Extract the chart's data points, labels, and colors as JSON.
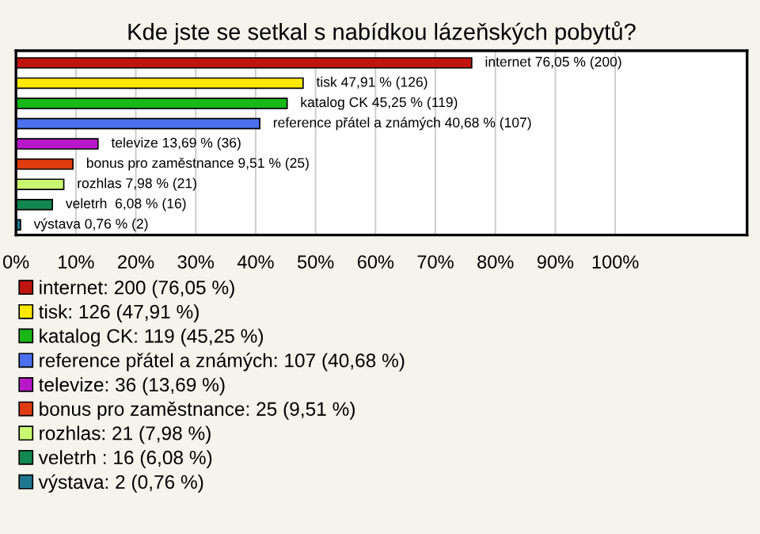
{
  "chart_data": {
    "type": "bar",
    "orientation": "horizontal",
    "title": "Kde jste se setkal s nabídkou lázeňských pobytů?",
    "categories": [
      null,
      null,
      null,
      null,
      null,
      null,
      null,
      null,
      null
    ],
    "series": [
      {
        "name": "internet: 200 (76,05 %)",
        "color": "#c0150f",
        "values": [
          76.05,
          null,
          null,
          null,
          null,
          null,
          null,
          null,
          null
        ],
        "value_labels": [
          "internet 76,05 % (200)",
          null,
          null,
          null,
          null,
          null,
          null,
          null,
          null
        ]
      },
      {
        "name": "tisk: 126 (47,91 %)",
        "color": "#ffe800",
        "values": [
          null,
          47.91,
          null,
          null,
          null,
          null,
          null,
          null,
          null
        ],
        "value_labels": [
          null,
          "tisk 47,91 % (126)",
          null,
          null,
          null,
          null,
          null,
          null,
          null
        ]
      },
      {
        "name": "katalog CK: 119 (45,25 %)",
        "color": "#18b818",
        "values": [
          null,
          null,
          45.25,
          null,
          null,
          null,
          null,
          null,
          null
        ],
        "value_labels": [
          null,
          null,
          "katalog CK 45,25 % (119)",
          null,
          null,
          null,
          null,
          null,
          null
        ]
      },
      {
        "name": "reference přátel a známých: 107 (40,68 %)",
        "color": "#4a70ee",
        "values": [
          null,
          null,
          null,
          40.68,
          null,
          null,
          null,
          null,
          null
        ],
        "value_labels": [
          null,
          null,
          null,
          "reference přátel a známých 40,68 % (107)",
          null,
          null,
          null,
          null,
          null
        ]
      },
      {
        "name": "televize: 36 (13,69 %)",
        "color": "#b818c8",
        "values": [
          null,
          null,
          null,
          null,
          13.69,
          null,
          null,
          null,
          null
        ],
        "value_labels": [
          null,
          null,
          null,
          null,
          "televize 13,69 % (36)",
          null,
          null,
          null,
          null
        ]
      },
      {
        "name": "bonus pro zaměstnance: 25 (9,51 %)",
        "color": "#e03c10",
        "values": [
          null,
          null,
          null,
          null,
          null,
          9.51,
          null,
          null,
          null
        ],
        "value_labels": [
          null,
          null,
          null,
          null,
          null,
          "bonus pro zaměstnance 9,51 % (25)",
          null,
          null,
          null
        ]
      },
      {
        "name": "rozhlas: 21 (7,98 %)",
        "color": "#c8f870",
        "values": [
          null,
          null,
          null,
          null,
          null,
          null,
          7.98,
          null,
          null
        ],
        "value_labels": [
          null,
          null,
          null,
          null,
          null,
          null,
          "rozhlas 7,98 % (21)",
          null,
          null
        ]
      },
      {
        "name": "veletrh : 16 (6,08 %)",
        "color": "#108850",
        "values": [
          null,
          null,
          null,
          null,
          null,
          null,
          null,
          6.08,
          null
        ],
        "value_labels": [
          null,
          null,
          null,
          null,
          null,
          null,
          null,
          "veletrh  6,08 % (16)",
          null
        ]
      },
      {
        "name": "výstava: 2 (0,76 %)",
        "color": "#207890",
        "values": [
          null,
          null,
          null,
          null,
          null,
          null,
          null,
          null,
          0.76
        ],
        "value_labels": [
          null,
          null,
          null,
          null,
          null,
          null,
          null,
          null,
          "výstava 0,76 % (2)"
        ]
      }
    ],
    "xlim": [
      0,
      122
    ],
    "xticks": [
      {
        "value": 0,
        "label": "0%"
      },
      {
        "value": 10,
        "label": "10%"
      },
      {
        "value": 20,
        "label": "20%"
      },
      {
        "value": 30,
        "label": "30%"
      },
      {
        "value": 40,
        "label": "40%"
      },
      {
        "value": 50,
        "label": "50%"
      },
      {
        "value": 60,
        "label": "60%"
      },
      {
        "value": 70,
        "label": "70%"
      },
      {
        "value": 80,
        "label": "80%"
      },
      {
        "value": 90,
        "label": "90%"
      },
      {
        "value": 100,
        "label": "100%"
      }
    ],
    "grid": "x",
    "legend": "bottom"
  }
}
